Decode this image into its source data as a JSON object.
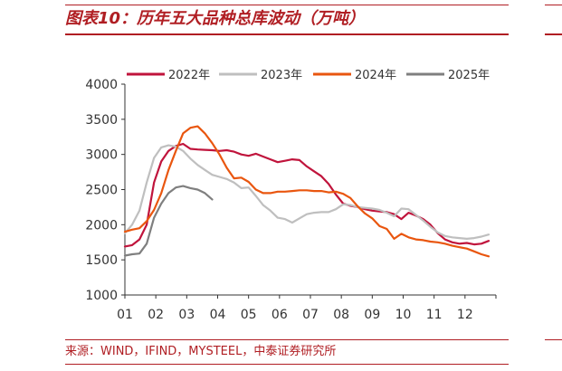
{
  "figure": {
    "title": "图表10：历年五大品种总库波动（万吨）",
    "source": "来源：WIND，IFIND，MYSTEEL，中泰证券研究所"
  },
  "chart_data": {
    "type": "line",
    "xlabel": "",
    "ylabel": "",
    "x_tick_labels": [
      "01",
      "02",
      "03",
      "04",
      "05",
      "06",
      "07",
      "08",
      "09",
      "10",
      "11",
      "12"
    ],
    "ylim": [
      1000,
      4000
    ],
    "y_ticks": [
      1000,
      1500,
      2000,
      2500,
      3000,
      3500,
      4000
    ],
    "grid": false,
    "legend_position": "top",
    "series": [
      {
        "name": "2022年",
        "color": "#c0143c",
        "width": 2.2,
        "values": [
          1690,
          1710,
          1790,
          2000,
          2600,
          2900,
          3050,
          3120,
          3150,
          3080,
          3070,
          3065,
          3060,
          3050,
          3060,
          3040,
          3000,
          2980,
          3010,
          2970,
          2930,
          2890,
          2910,
          2930,
          2920,
          2830,
          2760,
          2690,
          2580,
          2430,
          2300,
          2270,
          2250,
          2220,
          2200,
          2190,
          2180,
          2150,
          2080,
          2170,
          2130,
          2080,
          2000,
          1880,
          1790,
          1750,
          1730,
          1740,
          1720,
          1730,
          1770
        ]
      },
      {
        "name": "2023年",
        "color": "#bfbfbf",
        "width": 2.2,
        "values": [
          1880,
          2000,
          2200,
          2600,
          2950,
          3100,
          3130,
          3110,
          3050,
          2940,
          2850,
          2780,
          2710,
          2680,
          2650,
          2600,
          2520,
          2530,
          2410,
          2280,
          2200,
          2100,
          2080,
          2030,
          2090,
          2150,
          2170,
          2180,
          2180,
          2220,
          2290,
          2280,
          2250,
          2240,
          2230,
          2210,
          2170,
          2120,
          2230,
          2220,
          2140,
          2060,
          1970,
          1890,
          1840,
          1820,
          1810,
          1800,
          1810,
          1830,
          1860
        ]
      },
      {
        "name": "2024年",
        "color": "#e9560f",
        "width": 2.2,
        "values": [
          1900,
          1930,
          1950,
          2050,
          2210,
          2450,
          2780,
          3050,
          3300,
          3380,
          3400,
          3300,
          3160,
          3000,
          2810,
          2660,
          2670,
          2610,
          2500,
          2450,
          2450,
          2470,
          2470,
          2480,
          2490,
          2490,
          2480,
          2480,
          2460,
          2470,
          2440,
          2380,
          2260,
          2160,
          2090,
          1980,
          1940,
          1800,
          1870,
          1820,
          1790,
          1780,
          1760,
          1750,
          1730,
          1700,
          1680,
          1660,
          1620,
          1580,
          1550
        ]
      },
      {
        "name": "2025年",
        "color": "#7f7f7f",
        "width": 2.2,
        "values": [
          1560,
          1580,
          1590,
          1730,
          2100,
          2300,
          2450,
          2530,
          2550,
          2520,
          2500,
          2450,
          2360
        ]
      }
    ]
  }
}
